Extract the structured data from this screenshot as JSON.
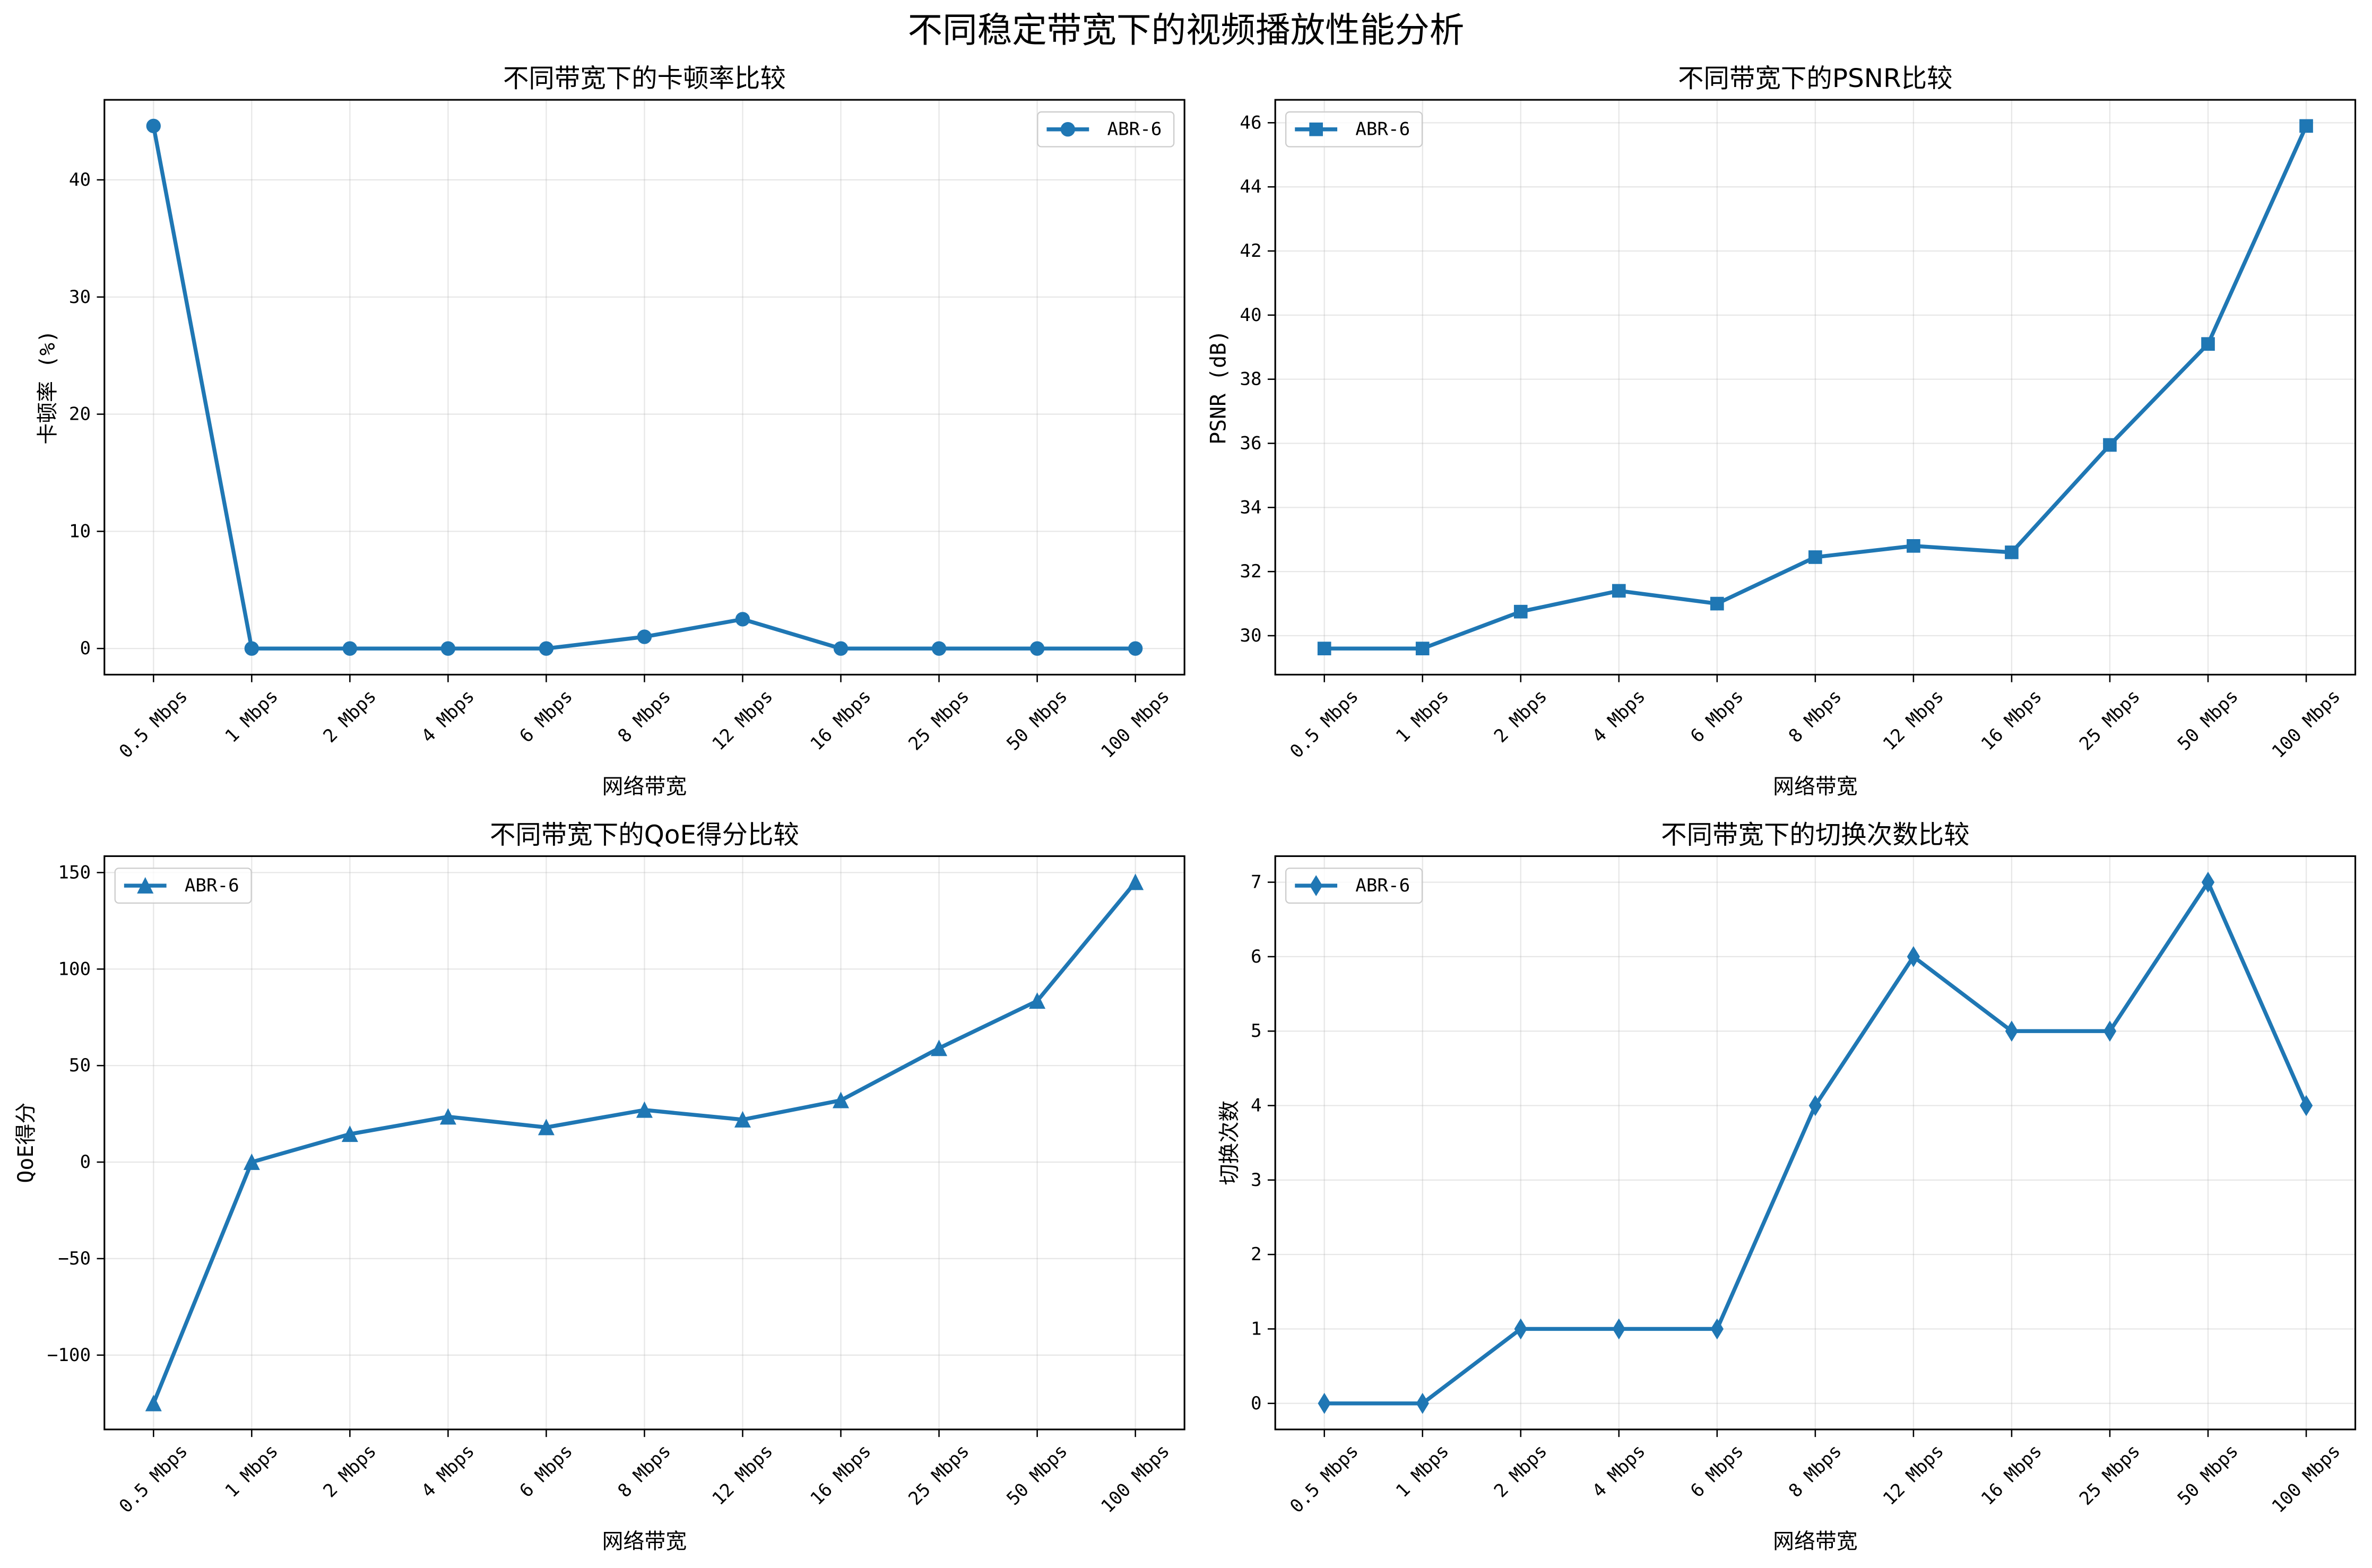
{
  "figure": {
    "title": "不同稳定带宽下的视频播放性能分析"
  },
  "colors": {
    "series": "#1f77b4",
    "grid": "#b0b0b0",
    "axes": "#000000",
    "legend_edge": "#cccccc",
    "legend_fill": "#ffffff"
  },
  "chart_data": [
    {
      "type": "line",
      "title": "不同带宽下的卡顿率比较",
      "xlabel": "网络带宽",
      "ylabel": "卡顿率 (%)",
      "categories": [
        "0.5 Mbps",
        "1 Mbps",
        "2 Mbps",
        "4 Mbps",
        "6 Mbps",
        "8 Mbps",
        "12 Mbps",
        "16 Mbps",
        "25 Mbps",
        "50 Mbps",
        "100 Mbps"
      ],
      "series": [
        {
          "name": "ABR-6",
          "marker": "circle",
          "values": [
            44.6,
            0,
            0,
            0,
            0,
            1.0,
            2.5,
            0,
            0,
            0,
            0
          ]
        }
      ],
      "ylim": [
        -2.23,
        46.83
      ],
      "yticks": [
        0,
        10,
        20,
        30,
        40
      ],
      "ytick_labels": [
        "0",
        "10",
        "20",
        "30",
        "40"
      ],
      "legend": "top-right",
      "grid": true
    },
    {
      "type": "line",
      "title": "不同带宽下的PSNR比较",
      "xlabel": "网络带宽",
      "ylabel": "PSNR (dB)",
      "categories": [
        "0.5 Mbps",
        "1 Mbps",
        "2 Mbps",
        "4 Mbps",
        "6 Mbps",
        "8 Mbps",
        "12 Mbps",
        "16 Mbps",
        "25 Mbps",
        "50 Mbps",
        "100 Mbps"
      ],
      "series": [
        {
          "name": "ABR-6",
          "marker": "square",
          "values": [
            29.6,
            29.6,
            30.75,
            31.4,
            31.0,
            32.45,
            32.8,
            32.6,
            35.95,
            39.1,
            45.9
          ]
        }
      ],
      "ylim": [
        28.785,
        46.715
      ],
      "yticks": [
        30,
        32,
        34,
        36,
        38,
        40,
        42,
        44,
        46
      ],
      "ytick_labels": [
        "30",
        "32",
        "34",
        "36",
        "38",
        "40",
        "42",
        "44",
        "46"
      ],
      "legend": "top-left",
      "grid": true
    },
    {
      "type": "line",
      "title": "不同带宽下的QoE得分比较",
      "xlabel": "网络带宽",
      "ylabel": "QoE得分",
      "categories": [
        "0.5 Mbps",
        "1 Mbps",
        "2 Mbps",
        "4 Mbps",
        "6 Mbps",
        "8 Mbps",
        "12 Mbps",
        "16 Mbps",
        "25 Mbps",
        "50 Mbps",
        "100 Mbps"
      ],
      "series": [
        {
          "name": "ABR-6",
          "marker": "triangle-up",
          "values": [
            -125,
            0,
            14.5,
            23.5,
            18,
            27,
            22,
            32,
            59,
            83.5,
            145
          ]
        }
      ],
      "ylim": [
        -138.5,
        158.5
      ],
      "yticks": [
        -100,
        -50,
        0,
        50,
        100,
        150
      ],
      "ytick_labels": [
        "−100",
        "−50",
        "0",
        "50",
        "100",
        "150"
      ],
      "legend": "top-left",
      "grid": true
    },
    {
      "type": "line",
      "title": "不同带宽下的切换次数比较",
      "xlabel": "网络带宽",
      "ylabel": "切换次数",
      "categories": [
        "0.5 Mbps",
        "1 Mbps",
        "2 Mbps",
        "4 Mbps",
        "6 Mbps",
        "8 Mbps",
        "12 Mbps",
        "16 Mbps",
        "25 Mbps",
        "50 Mbps",
        "100 Mbps"
      ],
      "series": [
        {
          "name": "ABR-6",
          "marker": "thin-diamond",
          "values": [
            0,
            0,
            1,
            1,
            1,
            4,
            6,
            5,
            5,
            7,
            4
          ]
        }
      ],
      "ylim": [
        -0.35,
        7.35
      ],
      "yticks": [
        0,
        1,
        2,
        3,
        4,
        5,
        6,
        7
      ],
      "ytick_labels": [
        "0",
        "1",
        "2",
        "3",
        "4",
        "5",
        "6",
        "7"
      ],
      "legend": "top-left",
      "grid": true
    }
  ]
}
